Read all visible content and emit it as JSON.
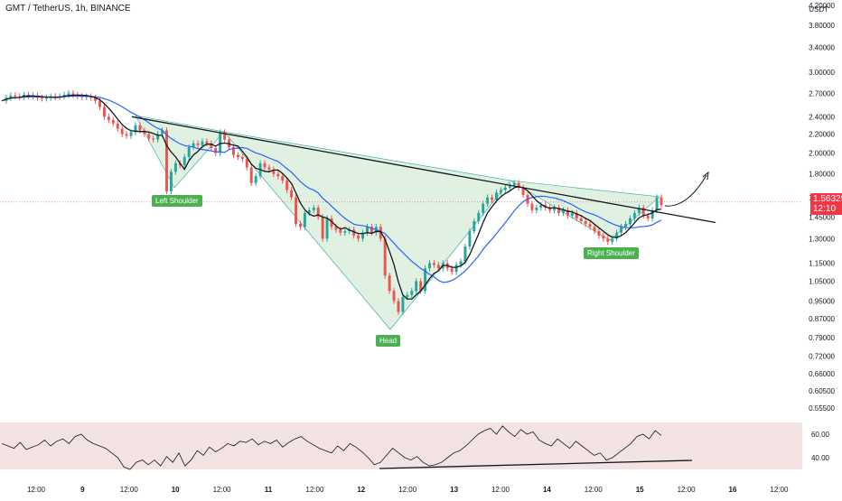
{
  "header": {
    "symbol_line": "GMT / TetherUS, 1h, BINANCE"
  },
  "colors": {
    "up": "#26a69a",
    "down": "#ef5350",
    "ma_fast": "#131722",
    "ma_slow": "#2962ff",
    "pattern_fill": "#c8e6c9",
    "label_bg": "#4caf50",
    "rsi_band": "#f2dede",
    "price_tag": "#f23645"
  },
  "price_axis": {
    "unit": "USDT",
    "ticks": [
      "4.20000",
      "3.80000",
      "3.40000",
      "3.00000",
      "2.70000",
      "2.40000",
      "2.20000",
      "2.00000",
      "1.80000",
      "1.60000",
      "1.45000",
      "1.30000",
      "1.15000",
      "1.05000",
      "0.95000",
      "0.87000",
      "0.79000",
      "0.72000",
      "0.66000",
      "0.60500",
      "0.55500"
    ],
    "last_price": "1.56329",
    "countdown": "12:10"
  },
  "time_axis": {
    "ticks": [
      {
        "label": "12:00",
        "bold": false
      },
      {
        "label": "9",
        "bold": true
      },
      {
        "label": "12:00",
        "bold": false
      },
      {
        "label": "10",
        "bold": true
      },
      {
        "label": "12:00",
        "bold": false
      },
      {
        "label": "11",
        "bold": true
      },
      {
        "label": "12:00",
        "bold": false
      },
      {
        "label": "12",
        "bold": true
      },
      {
        "label": "12:00",
        "bold": false
      },
      {
        "label": "13",
        "bold": true
      },
      {
        "label": "12:00",
        "bold": false
      },
      {
        "label": "14",
        "bold": true
      },
      {
        "label": "12:00",
        "bold": false
      },
      {
        "label": "15",
        "bold": true
      },
      {
        "label": "12:00",
        "bold": false
      },
      {
        "label": "16",
        "bold": true
      },
      {
        "label": "12:00",
        "bold": false
      }
    ]
  },
  "annotations": {
    "left_shoulder": "Left Shoulder",
    "head": "Head",
    "right_shoulder": "Right Shoulder"
  },
  "rsi_axis": {
    "ticks": [
      "60.00",
      "40.00"
    ]
  },
  "chart_data": {
    "type": "candlestick",
    "title": "GMT / TetherUS, 1h, BINANCE",
    "y_scale": "log",
    "ylim": [
      0.555,
      4.2
    ],
    "pattern": "inverse head and shoulders",
    "key_points": [
      {
        "label": "Left Shoulder",
        "value": 1.63
      },
      {
        "label": "Head",
        "value": 0.86
      },
      {
        "label": "Right Shoulder",
        "value": 1.27
      }
    ],
    "neckline": [
      2.4,
      1.41
    ],
    "last_price": 1.56329,
    "price_path": [
      [
        0,
        2.6
      ],
      [
        1,
        2.64
      ],
      [
        2,
        2.67
      ],
      [
        3,
        2.66
      ],
      [
        4,
        2.65
      ],
      [
        5,
        2.68
      ],
      [
        6,
        2.66
      ],
      [
        7,
        2.67
      ],
      [
        8,
        2.64
      ],
      [
        9,
        2.63
      ],
      [
        10,
        2.64
      ],
      [
        11,
        2.66
      ],
      [
        12,
        2.65
      ],
      [
        13,
        2.66
      ],
      [
        14,
        2.68
      ],
      [
        15,
        2.7
      ],
      [
        16,
        2.68
      ],
      [
        17,
        2.66
      ],
      [
        18,
        2.65
      ],
      [
        19,
        2.66
      ],
      [
        20,
        2.64
      ],
      [
        21,
        2.6
      ],
      [
        22,
        2.52
      ],
      [
        23,
        2.4
      ],
      [
        24,
        2.36
      ],
      [
        25,
        2.32
      ],
      [
        26,
        2.26
      ],
      [
        27,
        2.2
      ],
      [
        28,
        2.18
      ],
      [
        29,
        2.22
      ],
      [
        30,
        2.3
      ],
      [
        31,
        2.24
      ],
      [
        32,
        2.2
      ],
      [
        33,
        2.15
      ],
      [
        34,
        2.14
      ],
      [
        35,
        2.2
      ],
      [
        36,
        2.24
      ],
      [
        37,
        1.65
      ],
      [
        38,
        1.82
      ],
      [
        39,
        1.9
      ],
      [
        40,
        1.88
      ],
      [
        41,
        1.96
      ],
      [
        42,
        2.06
      ],
      [
        43,
        2.1
      ],
      [
        44,
        2.08
      ],
      [
        45,
        2.12
      ],
      [
        46,
        2.1
      ],
      [
        47,
        2.05
      ],
      [
        48,
        2.0
      ],
      [
        49,
        2.22
      ],
      [
        50,
        2.14
      ],
      [
        51,
        2.06
      ],
      [
        52,
        1.98
      ],
      [
        53,
        1.96
      ],
      [
        54,
        1.94
      ],
      [
        55,
        1.86
      ],
      [
        56,
        1.72
      ],
      [
        57,
        1.78
      ],
      [
        58,
        1.9
      ],
      [
        59,
        1.86
      ],
      [
        60,
        1.84
      ],
      [
        61,
        1.8
      ],
      [
        62,
        1.78
      ],
      [
        63,
        1.74
      ],
      [
        64,
        1.66
      ],
      [
        65,
        1.6
      ],
      [
        66,
        1.4
      ],
      [
        67,
        1.38
      ],
      [
        68,
        1.48
      ],
      [
        69,
        1.5
      ],
      [
        70,
        1.52
      ],
      [
        71,
        1.45
      ],
      [
        72,
        1.3
      ],
      [
        73,
        1.44
      ],
      [
        74,
        1.38
      ],
      [
        75,
        1.36
      ],
      [
        76,
        1.34
      ],
      [
        77,
        1.35
      ],
      [
        78,
        1.36
      ],
      [
        79,
        1.32
      ],
      [
        80,
        1.3
      ],
      [
        81,
        1.34
      ],
      [
        82,
        1.38
      ],
      [
        83,
        1.34
      ],
      [
        84,
        1.38
      ],
      [
        85,
        1.3
      ],
      [
        86,
        1.08
      ],
      [
        87,
        1.0
      ],
      [
        88,
        0.95
      ],
      [
        89,
        0.9
      ],
      [
        90,
        0.97
      ],
      [
        91,
        0.98
      ],
      [
        92,
        1.0
      ],
      [
        93,
        1.05
      ],
      [
        94,
        1.0
      ],
      [
        95,
        1.12
      ],
      [
        96,
        1.15
      ],
      [
        97,
        1.14
      ],
      [
        98,
        1.12
      ],
      [
        99,
        1.15
      ],
      [
        100,
        1.12
      ],
      [
        101,
        1.1
      ],
      [
        102,
        1.14
      ],
      [
        103,
        1.16
      ],
      [
        104,
        1.25
      ],
      [
        105,
        1.35
      ],
      [
        106,
        1.42
      ],
      [
        107,
        1.48
      ],
      [
        108,
        1.55
      ],
      [
        109,
        1.6
      ],
      [
        110,
        1.58
      ],
      [
        111,
        1.64
      ],
      [
        112,
        1.66
      ],
      [
        113,
        1.68
      ],
      [
        114,
        1.7
      ],
      [
        115,
        1.72
      ],
      [
        116,
        1.68
      ],
      [
        117,
        1.62
      ],
      [
        118,
        1.55
      ],
      [
        119,
        1.5
      ],
      [
        120,
        1.52
      ],
      [
        121,
        1.54
      ],
      [
        122,
        1.52
      ],
      [
        123,
        1.5
      ],
      [
        124,
        1.52
      ],
      [
        125,
        1.48
      ],
      [
        126,
        1.5
      ],
      [
        127,
        1.46
      ],
      [
        128,
        1.48
      ],
      [
        129,
        1.44
      ],
      [
        130,
        1.42
      ],
      [
        131,
        1.4
      ],
      [
        132,
        1.38
      ],
      [
        133,
        1.35
      ],
      [
        134,
        1.32
      ],
      [
        135,
        1.3
      ],
      [
        136,
        1.28
      ],
      [
        137,
        1.3
      ],
      [
        138,
        1.34
      ],
      [
        139,
        1.38
      ],
      [
        140,
        1.4
      ],
      [
        141,
        1.44
      ],
      [
        142,
        1.48
      ],
      [
        143,
        1.52
      ],
      [
        144,
        1.46
      ],
      [
        145,
        1.44
      ],
      [
        146,
        1.5
      ],
      [
        147,
        1.6
      ],
      [
        148,
        1.54
      ]
    ],
    "rsi": [
      52,
      50,
      48,
      53,
      47,
      49,
      51,
      55,
      50,
      54,
      56,
      52,
      58,
      60,
      55,
      52,
      50,
      48,
      44,
      40,
      32,
      30,
      36,
      38,
      34,
      38,
      33,
      41,
      36,
      44,
      33,
      38,
      46,
      42,
      49,
      45,
      48,
      52,
      50,
      54,
      53,
      56,
      51,
      54,
      52,
      55,
      49,
      53,
      56,
      58,
      54,
      51,
      48,
      46,
      44,
      50,
      46,
      52,
      49,
      45,
      40,
      34,
      36,
      42,
      48,
      44,
      40,
      38,
      41,
      36,
      33,
      34,
      36,
      40,
      44,
      46,
      50,
      55,
      60,
      63,
      65,
      60,
      67,
      62,
      58,
      64,
      60,
      62,
      55,
      52,
      50,
      56,
      52,
      48,
      54,
      50,
      46,
      42,
      44,
      38,
      40,
      44,
      48,
      52,
      58,
      60,
      56,
      63,
      59
    ]
  }
}
